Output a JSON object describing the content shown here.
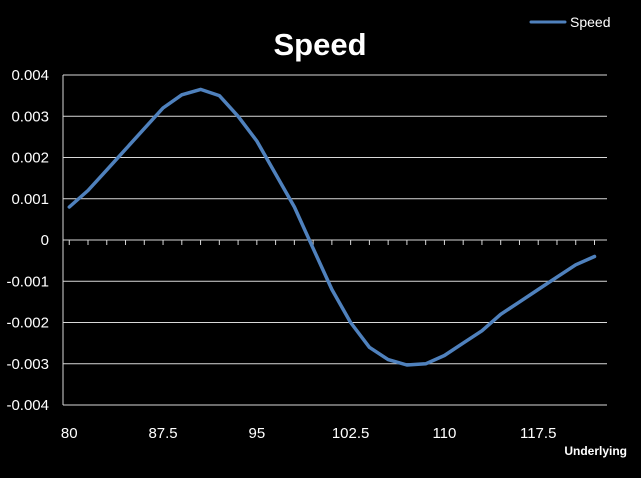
{
  "chart_data": {
    "type": "line",
    "title": "Speed",
    "xlabel": "Underlying",
    "ylabel": "",
    "legend": {
      "position": "top-right",
      "entries": [
        "Speed"
      ]
    },
    "grid": {
      "horizontal": true,
      "vertical": false
    },
    "xlim": [
      79.5,
      123.0
    ],
    "ylim": [
      -0.004,
      0.004
    ],
    "x_ticks": [
      80,
      87.5,
      95,
      102.5,
      110,
      117.5
    ],
    "x_tick_labels": [
      "80",
      "87.5",
      "95",
      "102.5",
      "110",
      "117.5"
    ],
    "y_ticks": [
      0.004,
      0.003,
      0.002,
      0.001,
      0,
      -0.001,
      -0.002,
      -0.003,
      -0.004
    ],
    "y_tick_labels": [
      "0.004",
      "0.003",
      "0.002",
      "0.001",
      "0",
      "-0.001",
      "-0.002",
      "-0.003",
      "-0.004"
    ],
    "series": [
      {
        "name": "Speed",
        "color": "#4f81bd",
        "x": [
          80,
          81.5,
          83,
          84.5,
          86,
          87.5,
          89,
          90.5,
          92,
          93.5,
          95,
          96.5,
          98,
          99.5,
          101,
          102.5,
          104,
          105.5,
          107,
          108.5,
          110,
          111.5,
          113,
          114.5,
          116,
          117.5,
          119,
          120.5,
          122
        ],
        "y": [
          0.0008,
          0.0012,
          0.0017,
          0.0022,
          0.0027,
          0.0032,
          0.00352,
          0.00365,
          0.0035,
          0.003,
          0.0024,
          0.0016,
          0.0008,
          -0.0002,
          -0.0012,
          -0.002,
          -0.0026,
          -0.0029,
          -0.00303,
          -0.003,
          -0.0028,
          -0.0025,
          -0.0022,
          -0.0018,
          -0.0015,
          -0.0012,
          -0.0009,
          -0.0006,
          -0.0004
        ]
      }
    ]
  },
  "colors": {
    "background": "#000000",
    "grid": "#d9d9d9",
    "line": "#4f81bd",
    "text": "#ffffff"
  }
}
